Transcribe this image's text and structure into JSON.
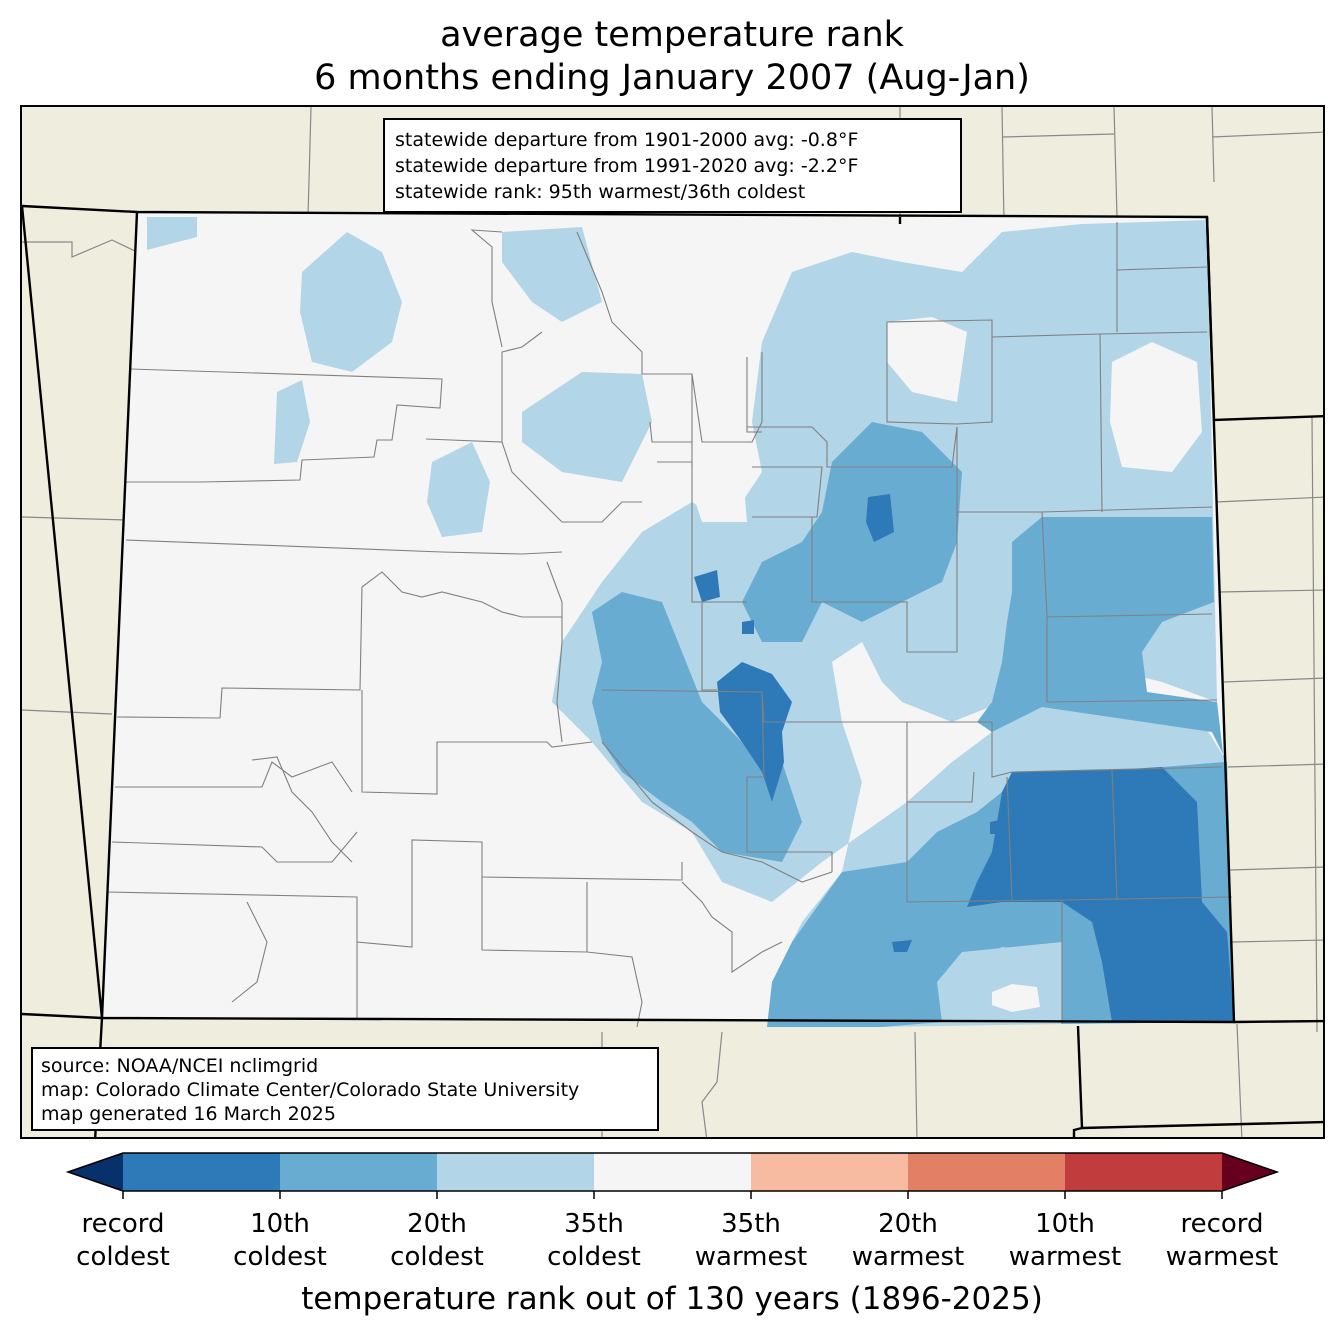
{
  "title": {
    "line1": "average temperature rank",
    "line2": "6 months ending January 2007 (Aug-Jan)"
  },
  "stats": {
    "line1": "statewide departure from 1901-2000 avg: -0.8°F",
    "line2": "statewide departure from 1991-2020 avg: -2.2°F",
    "line3": "statewide rank: 95th warmest/36th coldest"
  },
  "source": {
    "line1": "source: NOAA/NCEI nclimgrid",
    "line2": "map: Colorado Climate Center/Colorado State University",
    "line3": "map generated 16 March 2025"
  },
  "colorbar": {
    "label": "temperature rank out of 130 years (1896-2025)",
    "extend_low_color": "#08306b",
    "extend_high_color": "#67001f",
    "bins": [
      {
        "color": "#2e7ab8"
      },
      {
        "color": "#69acd2"
      },
      {
        "color": "#b2d5e8"
      },
      {
        "color": "#f5f5f5"
      },
      {
        "color": "#f7bba2"
      },
      {
        "color": "#e27f65"
      },
      {
        "color": "#c13c3c"
      }
    ],
    "ticks": [
      {
        "line1": "record",
        "line2": "coldest"
      },
      {
        "line1": "10th",
        "line2": "coldest"
      },
      {
        "line1": "20th",
        "line2": "coldest"
      },
      {
        "line1": "35th",
        "line2": "coldest"
      },
      {
        "line1": "35th",
        "line2": "warmest"
      },
      {
        "line1": "20th",
        "line2": "warmest"
      },
      {
        "line1": "10th",
        "line2": "warmest"
      },
      {
        "line1": "record",
        "line2": "warmest"
      }
    ]
  },
  "map_colors": {
    "background_land": "#efedde",
    "no_anomaly": "#f5f5f5",
    "boundary": "#000000",
    "county_line": "#808080"
  }
}
